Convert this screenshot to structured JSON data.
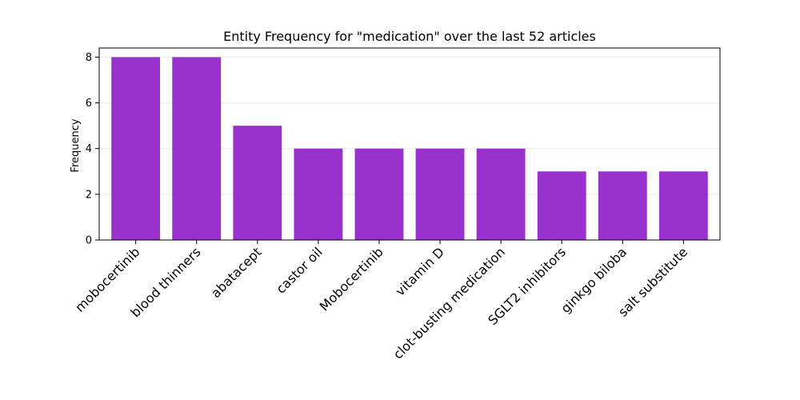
{
  "chart_data": {
    "type": "bar",
    "title": "Entity Frequency for \"medication\" over the last 52 articles",
    "xlabel": "",
    "ylabel": "Frequency",
    "categories": [
      "mobocertinib",
      "blood thinners",
      "abatacept",
      "castor oil",
      "Mobocertinib",
      "vitamin D",
      "clot-busting medication",
      "SGLT2 inhibitors",
      "ginkgo biloba",
      "salt substitute"
    ],
    "values": [
      8,
      8,
      5,
      4,
      4,
      4,
      4,
      3,
      3,
      3
    ],
    "ylim": [
      0,
      8.4
    ],
    "yticks": [
      0,
      2,
      4,
      6,
      8
    ],
    "grid": "y",
    "legend": "none",
    "bar_color": "#9932CC",
    "xtick_rotation": -45
  }
}
